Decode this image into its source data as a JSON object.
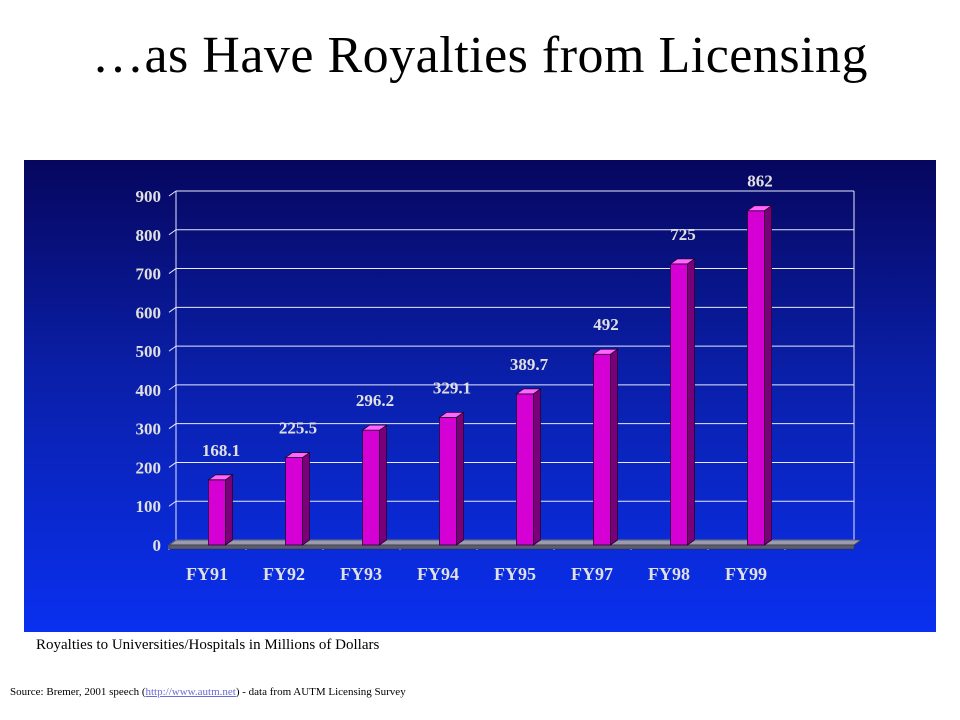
{
  "slide": {
    "title": "…as Have Royalties from Licensing",
    "caption": "Royalties to Universities/Hospitals in Millions of Dollars",
    "source_prefix": "Source: Bremer, 2001 speech (",
    "source_link": "http://www.autm.net",
    "source_suffix": ") - data from AUTM Licensing Survey"
  },
  "chart_data": {
    "type": "bar",
    "categories": [
      "FY91",
      "FY92",
      "FY93",
      "FY94",
      "FY95",
      "FY97",
      "FY98",
      "FY99"
    ],
    "values": [
      168.1,
      225.5,
      296.2,
      329.1,
      389.7,
      492,
      725,
      862
    ],
    "data_labels": [
      "168.1",
      "225.5",
      "296.2",
      "329.1",
      "389.7",
      "492",
      "725",
      "862"
    ],
    "title": "",
    "xlabel": "",
    "ylabel": "",
    "ylim": [
      0,
      900
    ],
    "yticks": [
      0,
      100,
      200,
      300,
      400,
      500,
      600,
      700,
      800,
      900
    ],
    "grid": true,
    "legend": "none",
    "colors": {
      "bar_front": "#d400d4",
      "bar_side": "#7a007a",
      "bar_top": "#ff66ff",
      "bar_edge": "#2a0030",
      "gridline": "#e8e8ff",
      "tick_text": "#e0e0e0",
      "label_text": "#e0e0e0",
      "floor": "#9a9ab0"
    }
  }
}
